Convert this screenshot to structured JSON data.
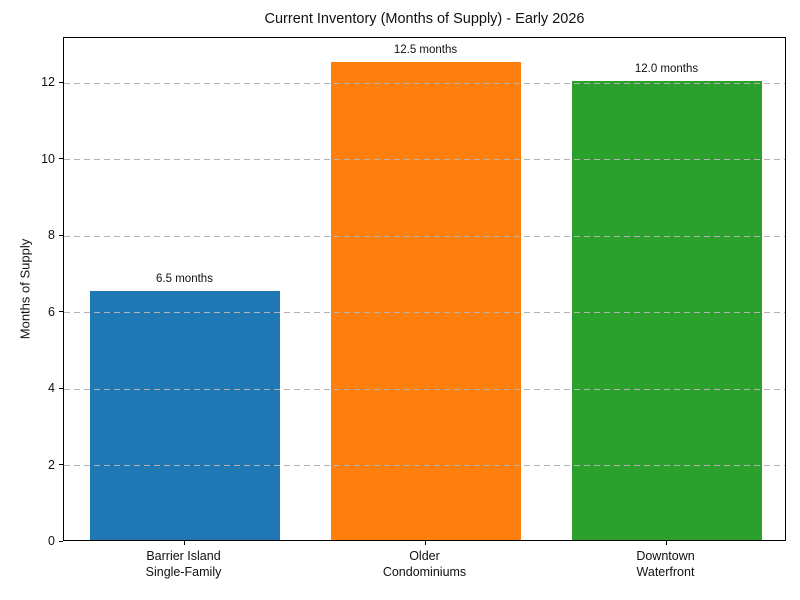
{
  "chart_data": {
    "type": "bar",
    "title": "Current Inventory (Months of Supply) - Early 2026",
    "ylabel": "Months of Supply",
    "xlabel": "",
    "categories": [
      "Barrier Island\nSingle-Family",
      "Older\nCondominiums",
      "Downtown\nWaterfront"
    ],
    "values": [
      6.5,
      12.5,
      12.0
    ],
    "bar_labels": [
      "6.5 months",
      "12.5 months",
      "12.0 months"
    ],
    "bar_colors": [
      "#1f77b4",
      "#ff7f0e",
      "#2ca02c"
    ],
    "yticks": [
      0,
      2,
      4,
      6,
      8,
      10,
      12
    ],
    "ylim": [
      0,
      13.18
    ],
    "grid": "horizontal-dashed-above-bars",
    "gridline_color": "#b3b3b3",
    "spine_color": "#000000",
    "background_color": "#ffffff"
  }
}
